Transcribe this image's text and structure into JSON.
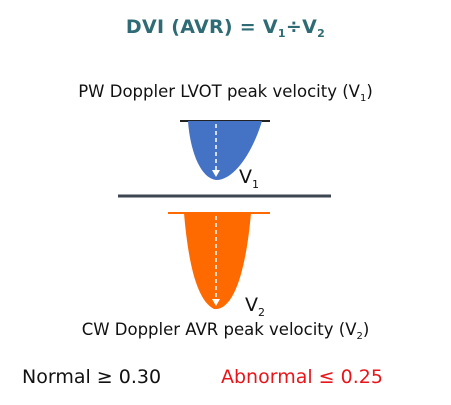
{
  "title": {
    "prefix": "DVI (AVR) = V",
    "sub1": "1",
    "div": "÷V",
    "sub2": "2"
  },
  "pw_label": {
    "text": "PW Doppler LVOT peak velocity (V",
    "sub": "1",
    "close": ")"
  },
  "cw_label": {
    "text": "CW Doppler AVR peak velocity (V",
    "sub": "2",
    "close": ")"
  },
  "marker_v1": {
    "text": "V",
    "sub": "1"
  },
  "marker_v2": {
    "text": "V",
    "sub": "2"
  },
  "thresholds": {
    "normal": "Normal ≥ 0.30",
    "abnormal": "Abnormal ≤ 0.25"
  },
  "colors": {
    "title": "#2e6b74",
    "pw_envelope": "#4472c4",
    "cw_envelope": "#ff6a00",
    "baseline": "#3c4650",
    "abnormal": "#e8151b"
  }
}
